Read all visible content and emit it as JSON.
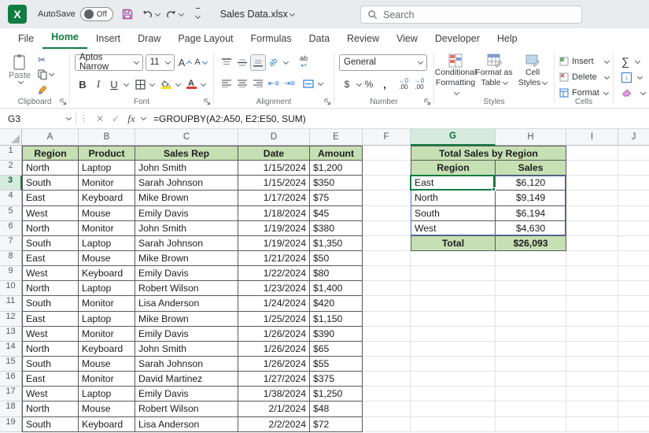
{
  "titlebar": {
    "autosave_label": "AutoSave",
    "autosave_state": "Off",
    "filename": "Sales Data.xlsx",
    "search_placeholder": "Search"
  },
  "tabs": {
    "items": [
      "File",
      "Home",
      "Insert",
      "Draw",
      "Page Layout",
      "Formulas",
      "Data",
      "Review",
      "View",
      "Developer",
      "Help"
    ],
    "active": "Home"
  },
  "ribbon": {
    "paste_label": "Paste",
    "font_name": "Aptos Narrow",
    "font_size": "11",
    "number_format": "General",
    "styles_buttons": [
      {
        "line1": "Conditional",
        "line2": "Formatting"
      },
      {
        "line1": "Format as",
        "line2": "Table"
      },
      {
        "line1": "Cell",
        "line2": "Styles"
      }
    ],
    "cells_buttons": [
      "Insert",
      "Delete",
      "Format"
    ],
    "group_labels": {
      "clipboard": "Clipboard",
      "font": "Font",
      "alignment": "Alignment",
      "number": "Number",
      "styles": "Styles",
      "cells": "Cells"
    }
  },
  "formula_bar": {
    "cell_ref": "G3",
    "formula": "=GROUPBY(A2:A50, E2:E50, SUM)"
  },
  "sheet": {
    "column_letters": [
      "A",
      "B",
      "C",
      "D",
      "E",
      "F",
      "G",
      "H",
      "I",
      "J"
    ],
    "row_count": 19,
    "selection": {
      "cell": "G3",
      "column": "G",
      "row": 3
    },
    "main_table": {
      "headers": [
        "Region",
        "Product",
        "Sales Rep",
        "Date",
        "Amount"
      ],
      "rows": [
        [
          "North",
          "Laptop",
          "John Smith",
          "1/15/2024",
          "$1,200"
        ],
        [
          "South",
          "Monitor",
          "Sarah Johnson",
          "1/15/2024",
          "$350"
        ],
        [
          "East",
          "Keyboard",
          "Mike Brown",
          "1/17/2024",
          "$75"
        ],
        [
          "West",
          "Mouse",
          "Emily Davis",
          "1/18/2024",
          "$45"
        ],
        [
          "North",
          "Monitor",
          "John Smith",
          "1/19/2024",
          "$380"
        ],
        [
          "South",
          "Laptop",
          "Sarah Johnson",
          "1/19/2024",
          "$1,350"
        ],
        [
          "East",
          "Mouse",
          "Mike Brown",
          "1/21/2024",
          "$50"
        ],
        [
          "West",
          "Keyboard",
          "Emily Davis",
          "1/22/2024",
          "$80"
        ],
        [
          "North",
          "Laptop",
          "Robert Wilson",
          "1/23/2024",
          "$1,400"
        ],
        [
          "South",
          "Monitor",
          "Lisa Anderson",
          "1/24/2024",
          "$420"
        ],
        [
          "East",
          "Laptop",
          "Mike Brown",
          "1/25/2024",
          "$1,150"
        ],
        [
          "West",
          "Monitor",
          "Emily Davis",
          "1/26/2024",
          "$390"
        ],
        [
          "North",
          "Keyboard",
          "John Smith",
          "1/26/2024",
          "$65"
        ],
        [
          "South",
          "Mouse",
          "Sarah Johnson",
          "1/26/2024",
          "$55"
        ],
        [
          "East",
          "Monitor",
          "David Martinez",
          "1/27/2024",
          "$375"
        ],
        [
          "West",
          "Laptop",
          "Emily Davis",
          "1/38/2024",
          "$1,250"
        ],
        [
          "North",
          "Mouse",
          "Robert Wilson",
          "2/1/2024",
          "$48"
        ],
        [
          "South",
          "Keyboard",
          "Lisa Anderson",
          "2/2/2024",
          "$72"
        ]
      ]
    },
    "summary_table": {
      "title": "Total Sales by Region",
      "headers": [
        "Region",
        "Sales"
      ],
      "rows": [
        [
          "East",
          "$6,120"
        ],
        [
          "North",
          "$9,149"
        ],
        [
          "South",
          "$6,194"
        ],
        [
          "West",
          "$4,630"
        ]
      ],
      "total_label": "Total",
      "total_value": "$26,093"
    }
  },
  "colors": {
    "header_fill": "#C6E0B4",
    "excel_green": "#107C41",
    "spill_border": "#4472C4"
  }
}
